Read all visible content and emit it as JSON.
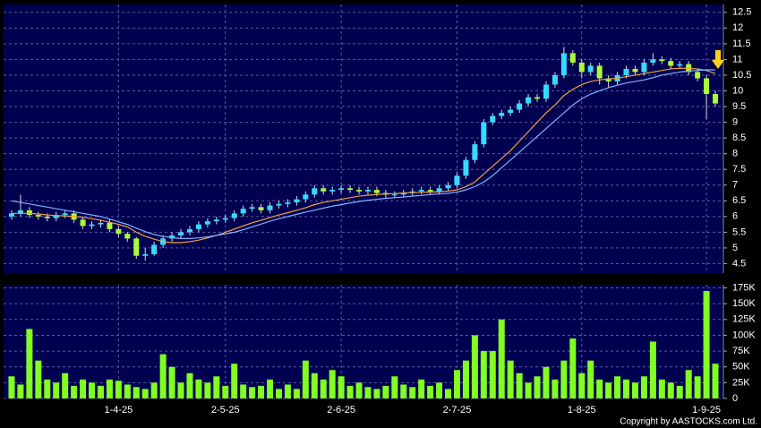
{
  "chart_data": [
    {
      "type": "candlestick",
      "up_color": "#33ddff",
      "down_color": "#aaff33",
      "wick_color": "#d8d8d8",
      "open": [
        6.0,
        6.1,
        6.2,
        6.05,
        6.0,
        5.95,
        6.05,
        6.1,
        5.9,
        5.7,
        5.75,
        5.8,
        5.6,
        5.45,
        5.3,
        4.75,
        4.8,
        5.1,
        5.3,
        5.4,
        5.5,
        5.6,
        5.75,
        5.85,
        5.9,
        5.95,
        6.1,
        6.25,
        6.3,
        6.2,
        6.35,
        6.4,
        6.45,
        6.55,
        6.7,
        6.9,
        6.8,
        6.85,
        6.9,
        6.85,
        6.8,
        6.85,
        6.75,
        6.7,
        6.7,
        6.75,
        6.8,
        6.85,
        6.8,
        6.9,
        7.0,
        7.3,
        7.8,
        8.3,
        9.0,
        9.2,
        9.3,
        9.4,
        9.6,
        9.8,
        9.75,
        10.2,
        10.5,
        11.2,
        10.9,
        10.6,
        10.8,
        10.4,
        10.3,
        10.5,
        10.7,
        10.6,
        10.9,
        11.0,
        10.95,
        10.8,
        10.85,
        10.6,
        10.4,
        9.9
      ],
      "high": [
        6.2,
        6.7,
        6.3,
        6.15,
        6.1,
        6.15,
        6.2,
        6.2,
        6.0,
        5.85,
        5.9,
        5.9,
        5.7,
        5.5,
        5.35,
        5.0,
        5.2,
        5.4,
        5.5,
        5.6,
        5.7,
        5.85,
        5.95,
        6.0,
        6.05,
        6.2,
        6.35,
        6.4,
        6.4,
        6.45,
        6.5,
        6.55,
        6.65,
        6.8,
        7.0,
        7.0,
        6.95,
        7.0,
        7.0,
        6.95,
        6.95,
        6.95,
        6.85,
        6.8,
        6.85,
        6.9,
        6.95,
        6.95,
        7.0,
        7.1,
        7.4,
        7.9,
        8.4,
        9.1,
        9.3,
        9.4,
        9.5,
        9.7,
        9.9,
        9.9,
        10.3,
        10.6,
        11.4,
        11.3,
        11.0,
        10.9,
        10.9,
        10.5,
        10.6,
        10.8,
        10.8,
        11.0,
        11.2,
        11.1,
        11.05,
        10.95,
        10.95,
        10.7,
        10.5,
        10.0
      ],
      "low": [
        5.9,
        6.0,
        5.95,
        5.9,
        5.85,
        5.85,
        5.95,
        5.8,
        5.6,
        5.6,
        5.65,
        5.5,
        5.35,
        5.2,
        4.65,
        4.6,
        4.75,
        5.0,
        5.2,
        5.3,
        5.4,
        5.5,
        5.65,
        5.75,
        5.8,
        5.85,
        6.0,
        6.15,
        6.1,
        6.1,
        6.25,
        6.3,
        6.35,
        6.45,
        6.6,
        6.7,
        6.7,
        6.75,
        6.75,
        6.7,
        6.7,
        6.65,
        6.6,
        6.6,
        6.6,
        6.65,
        6.7,
        6.7,
        6.7,
        6.8,
        6.9,
        7.2,
        7.7,
        8.2,
        8.9,
        9.1,
        9.2,
        9.3,
        9.5,
        9.65,
        9.65,
        10.1,
        10.4,
        10.8,
        10.4,
        10.5,
        10.2,
        10.1,
        10.2,
        10.4,
        10.5,
        10.5,
        10.8,
        10.85,
        10.7,
        10.7,
        10.5,
        10.3,
        9.1,
        9.5
      ],
      "close": [
        6.1,
        6.2,
        6.05,
        6.0,
        5.95,
        6.05,
        6.1,
        5.9,
        5.7,
        5.75,
        5.8,
        5.6,
        5.45,
        5.3,
        4.75,
        4.8,
        5.1,
        5.3,
        5.4,
        5.5,
        5.6,
        5.75,
        5.85,
        5.9,
        5.95,
        6.1,
        6.25,
        6.3,
        6.2,
        6.35,
        6.4,
        6.45,
        6.55,
        6.7,
        6.9,
        6.8,
        6.85,
        6.9,
        6.85,
        6.8,
        6.85,
        6.75,
        6.7,
        6.7,
        6.75,
        6.8,
        6.85,
        6.8,
        6.9,
        7.0,
        7.3,
        7.8,
        8.3,
        9.0,
        9.2,
        9.3,
        9.4,
        9.6,
        9.8,
        9.75,
        10.2,
        10.5,
        11.2,
        10.9,
        10.6,
        10.8,
        10.4,
        10.3,
        10.5,
        10.7,
        10.6,
        10.9,
        11.0,
        10.95,
        10.8,
        10.85,
        10.6,
        10.4,
        9.9,
        9.6
      ],
      "series": [
        {
          "color": "#f0a040",
          "values": [
            6.1,
            6.1,
            6.1,
            6.08,
            6.05,
            6.03,
            6.02,
            6.0,
            5.98,
            5.93,
            5.88,
            5.82,
            5.75,
            5.67,
            5.5,
            5.37,
            5.28,
            5.2,
            5.17,
            5.17,
            5.2,
            5.25,
            5.32,
            5.4,
            5.5,
            5.6,
            5.7,
            5.8,
            5.88,
            5.97,
            6.05,
            6.12,
            6.2,
            6.28,
            6.38,
            6.45,
            6.5,
            6.55,
            6.6,
            6.65,
            6.68,
            6.7,
            6.72,
            6.73,
            6.75,
            6.76,
            6.77,
            6.78,
            6.79,
            6.81,
            6.85,
            6.95,
            7.1,
            7.35,
            7.6,
            7.85,
            8.1,
            8.4,
            8.7,
            9.0,
            9.3,
            9.55,
            9.85,
            10.05,
            10.2,
            10.3,
            10.35,
            10.38,
            10.4,
            10.45,
            10.5,
            10.55,
            10.6,
            10.65,
            10.7,
            10.72,
            10.72,
            10.7,
            10.65,
            10.55
          ]
        },
        {
          "color": "#7fb2ff",
          "values": [
            6.5,
            6.45,
            6.4,
            6.35,
            6.3,
            6.25,
            6.2,
            6.15,
            6.1,
            6.05,
            6.0,
            5.92,
            5.83,
            5.75,
            5.63,
            5.52,
            5.43,
            5.37,
            5.33,
            5.3,
            5.3,
            5.32,
            5.35,
            5.4,
            5.45,
            5.5,
            5.58,
            5.67,
            5.76,
            5.85,
            5.93,
            6.0,
            6.07,
            6.14,
            6.2,
            6.27,
            6.33,
            6.38,
            6.43,
            6.48,
            6.52,
            6.55,
            6.58,
            6.6,
            6.62,
            6.65,
            6.67,
            6.7,
            6.72,
            6.74,
            6.78,
            6.85,
            6.95,
            7.1,
            7.3,
            7.55,
            7.8,
            8.05,
            8.3,
            8.55,
            8.8,
            9.05,
            9.3,
            9.55,
            9.75,
            9.9,
            10.0,
            10.1,
            10.18,
            10.25,
            10.3,
            10.35,
            10.42,
            10.5,
            10.55,
            10.6,
            10.63,
            10.65,
            10.67,
            10.67
          ]
        }
      ],
      "ylim": [
        4.2,
        12.75
      ],
      "yticks": [
        4.5,
        5,
        5.5,
        6,
        6.5,
        7,
        7.5,
        8,
        8.5,
        9,
        9.5,
        10,
        10.5,
        11,
        11.5,
        12,
        12.5
      ],
      "grid": true
    },
    {
      "type": "bar",
      "color": "#80ff20",
      "categories": [
        null,
        null,
        null,
        null,
        null,
        null,
        null,
        null,
        null,
        null,
        null,
        null,
        "1-4-25",
        null,
        null,
        null,
        null,
        null,
        null,
        null,
        null,
        null,
        null,
        null,
        "2-5-25",
        null,
        null,
        null,
        null,
        null,
        null,
        null,
        null,
        null,
        null,
        null,
        null,
        "2-6-25",
        null,
        null,
        null,
        null,
        null,
        null,
        null,
        null,
        null,
        null,
        null,
        null,
        "2-7-25",
        null,
        null,
        null,
        null,
        null,
        null,
        null,
        null,
        null,
        null,
        null,
        null,
        null,
        "1-8-25",
        null,
        null,
        null,
        null,
        null,
        null,
        null,
        null,
        null,
        null,
        null,
        null,
        null,
        "1-9-25",
        null
      ],
      "values": [
        35000,
        22000,
        110000,
        60000,
        30000,
        25000,
        40000,
        20000,
        30000,
        25000,
        20000,
        30000,
        28000,
        22000,
        18000,
        15000,
        25000,
        70000,
        50000,
        25000,
        40000,
        30000,
        25000,
        35000,
        20000,
        55000,
        22000,
        18000,
        20000,
        30000,
        15000,
        22000,
        15000,
        60000,
        40000,
        30000,
        45000,
        35000,
        20000,
        25000,
        18000,
        15000,
        20000,
        35000,
        22000,
        18000,
        30000,
        20000,
        25000,
        15000,
        45000,
        60000,
        100000,
        75000,
        75000,
        125000,
        60000,
        40000,
        25000,
        35000,
        50000,
        30000,
        60000,
        95000,
        40000,
        60000,
        30000,
        25000,
        35000,
        30000,
        25000,
        35000,
        90000,
        30000,
        25000,
        20000,
        45000,
        35000,
        170000,
        55000
      ],
      "ylim": [
        0,
        180000
      ],
      "yticks": [
        0,
        {
          "value": 25000,
          "label": "25K"
        },
        {
          "value": 50000,
          "label": "50K"
        },
        {
          "value": 75000,
          "label": "75K"
        },
        {
          "value": 100000,
          "label": "100K"
        },
        {
          "value": 125000,
          "label": "125K"
        },
        {
          "value": 150000,
          "label": "150K"
        },
        {
          "value": 175000,
          "label": "175K"
        }
      ],
      "grid": true,
      "copyright": "Copyright by AASTOCKS.com Ltd."
    }
  ]
}
